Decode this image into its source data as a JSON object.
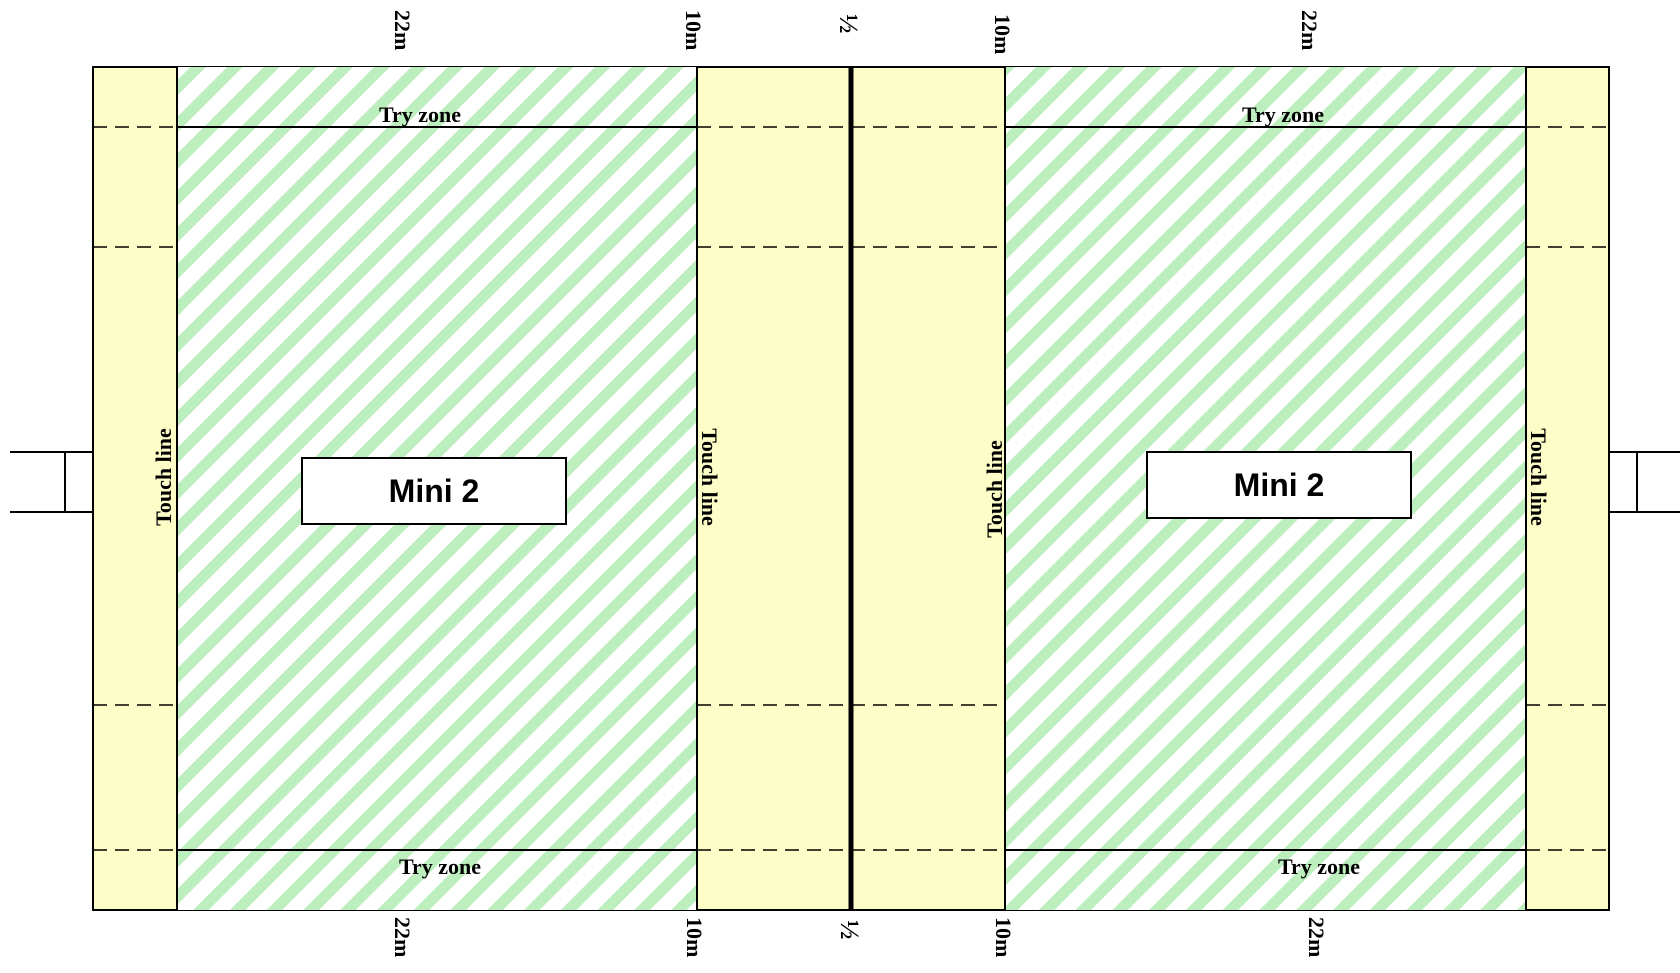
{
  "colors": {
    "field_fill": "#fdfdc8",
    "stripe": "#bdeebd",
    "line": "#000000",
    "label_box": "#ffffff"
  },
  "top_markers": {
    "left_22": "22m",
    "left_10": "10m",
    "half": "½",
    "right_10": "10m",
    "right_22": "22m"
  },
  "bottom_markers": {
    "left_22": "22m",
    "left_10": "10m",
    "half": "½",
    "right_10": "10m",
    "right_22": "22m"
  },
  "left_pitch": {
    "try_zone_top": "Try zone",
    "try_zone_bottom": "Try zone",
    "touch_line_left": "Touch line",
    "touch_line_right": "Touch line",
    "label": "Mini 2"
  },
  "right_pitch": {
    "try_zone_top": "Try zone",
    "try_zone_bottom": "Try zone",
    "touch_line_left": "Touch line",
    "touch_line_right": "Touch line",
    "label": "Mini 2"
  }
}
